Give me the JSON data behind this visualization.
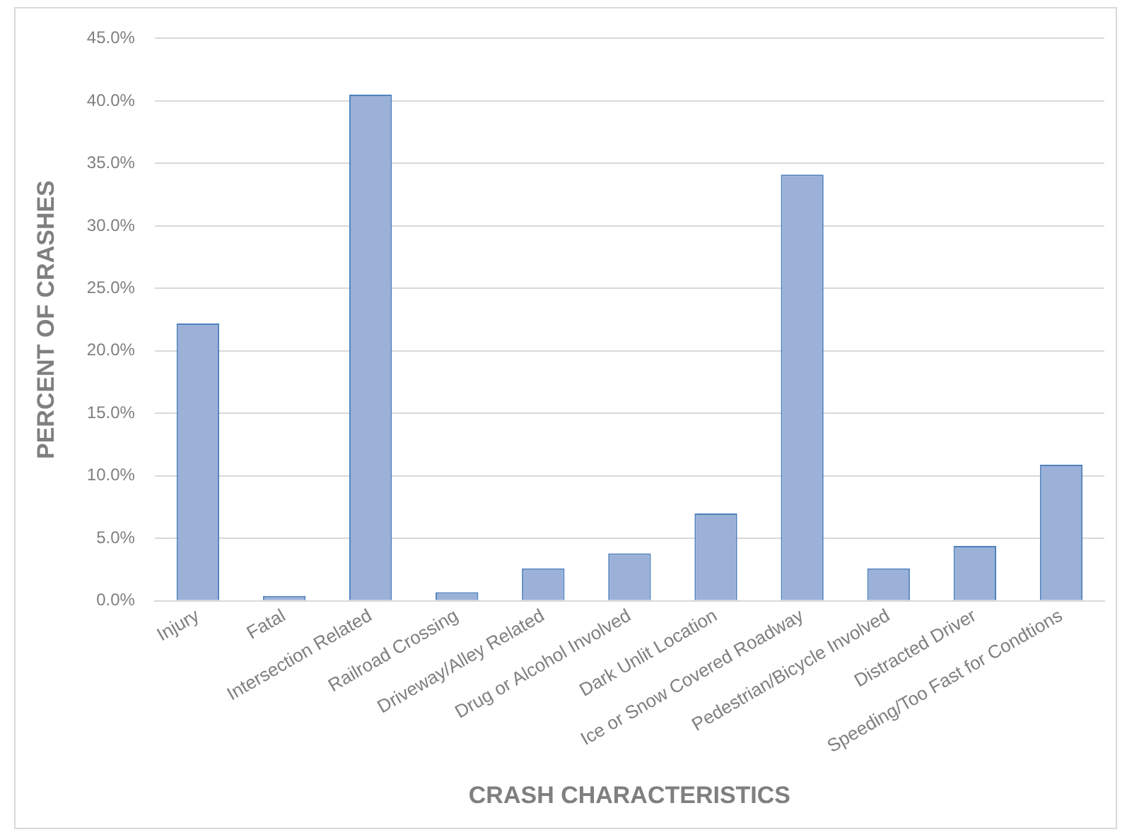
{
  "chart_data": {
    "type": "bar",
    "xlabel": "CRASH CHARACTERISTICS",
    "ylabel": "PERCENT OF CRASHES",
    "categories": [
      "Injury",
      "Fatal",
      "Intersection Related",
      "Railroad Crossing",
      "Driveway/Alley Related",
      "Drug or Alcohol Involved",
      "Dark Unlit Location",
      "Ice or Snow Covered Roadway",
      "Pedestrian/Bicycle Involved",
      "Distracted Driver",
      "Speeding/Too Fast for Condtions"
    ],
    "values": [
      22.2,
      0.4,
      40.5,
      0.7,
      2.6,
      3.8,
      7.0,
      34.1,
      2.6,
      4.4,
      10.9
    ],
    "color": "#9bb1d8",
    "ylim": [
      0,
      45
    ],
    "yticks": [
      {
        "value": 0,
        "label": "0.0%"
      },
      {
        "value": 5,
        "label": "5.0%"
      },
      {
        "value": 10,
        "label": "10.0%"
      },
      {
        "value": 15,
        "label": "15.0%"
      },
      {
        "value": 20,
        "label": "20.0%"
      },
      {
        "value": 25,
        "label": "25.0%"
      },
      {
        "value": 30,
        "label": "30.0%"
      },
      {
        "value": 35,
        "label": "35.0%"
      },
      {
        "value": 40,
        "label": "40.0%"
      },
      {
        "value": 45,
        "label": "45.0%"
      }
    ],
    "grid": "y"
  }
}
